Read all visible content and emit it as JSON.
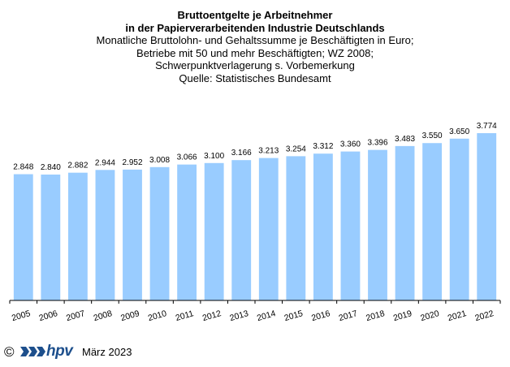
{
  "chart_data": {
    "type": "bar",
    "title": "Bruttoentgelte je Arbeitnehmer",
    "title_line2": "in der Papierverarbeitenden Industrie Deutschlands",
    "subtitle_lines": [
      "Monatliche Bruttolohn- und Gehaltssumme je Beschäftigten in Euro;",
      "Betriebe mit 50 und mehr Beschäftigten; WZ 2008;",
      "Schwerpunktverlagerung  s. Vorbemerkung",
      "Quelle: Statistisches Bundesamt"
    ],
    "categories": [
      "2005",
      "2006",
      "2007",
      "2008",
      "2009",
      "2010",
      "2011",
      "2012",
      "2013",
      "2014",
      "2015",
      "2016",
      "2017",
      "2018",
      "2019",
      "2020",
      "2021",
      "2022"
    ],
    "values": [
      2848,
      2840,
      2882,
      2944,
      2952,
      3008,
      3066,
      3100,
      3166,
      3213,
      3254,
      3312,
      3360,
      3396,
      3483,
      3550,
      3650,
      3774
    ],
    "value_labels": [
      "2.848",
      "2.840",
      "2.882",
      "2.944",
      "2.952",
      "3.008",
      "3.066",
      "3.100",
      "3.166",
      "3.213",
      "3.254",
      "3.312",
      "3.360",
      "3.396",
      "3.483",
      "3.550",
      "3.650",
      "3.774"
    ],
    "ylim": [
      0,
      3774
    ],
    "xlabel": "",
    "ylabel": "",
    "grid": false,
    "bar_color": "#99ccff"
  },
  "footer": {
    "copyright": "©",
    "brand": "hpv",
    "date": "März 2023",
    "logo_color": "#1d4f8c"
  }
}
